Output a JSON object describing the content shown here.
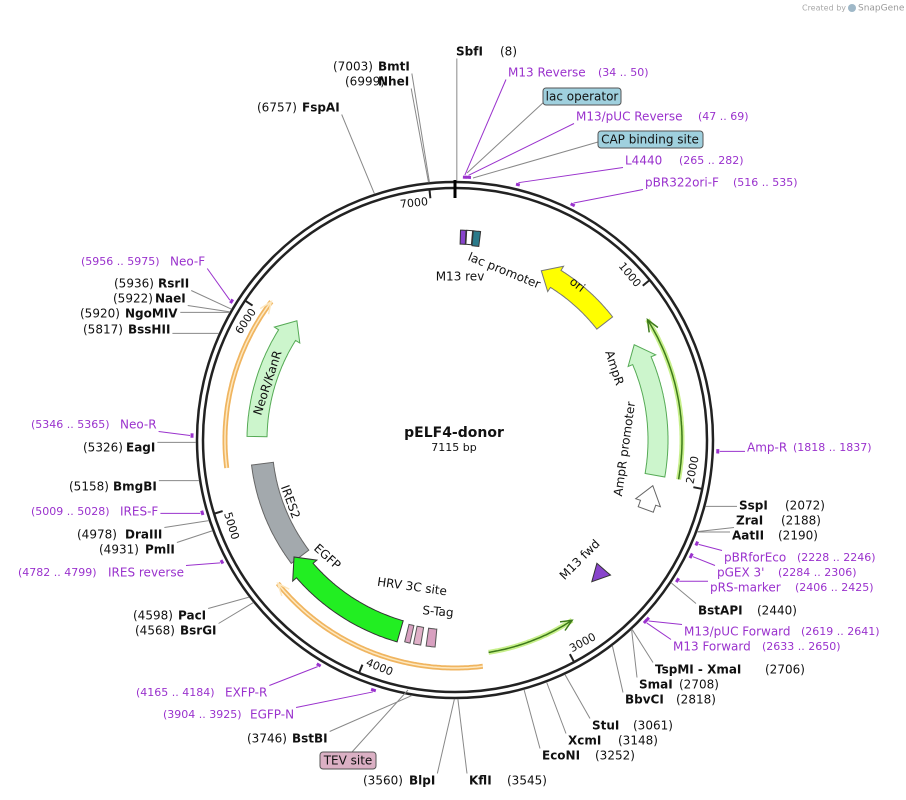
{
  "branding": {
    "created_by": "Created by",
    "brand": "SnapGene"
  },
  "plasmid": {
    "name": "pELF4-donor",
    "size": {
      "value": 7115,
      "label": "7115 bp"
    },
    "ticks": [
      1000,
      2000,
      3000,
      4000,
      5000,
      6000,
      7000
    ]
  },
  "enzymes": [
    {
      "name": "SbfI",
      "position": {
        "value": 8,
        "label": "(8)"
      }
    },
    {
      "name": "SspI",
      "position": {
        "value": 2072,
        "label": "(2072)"
      }
    },
    {
      "name": "ZraI",
      "position": {
        "value": 2188,
        "label": "(2188)"
      }
    },
    {
      "name": "AatII",
      "position": {
        "value": 2190,
        "label": "(2190)"
      }
    },
    {
      "name": "BstAPI",
      "position": {
        "value": 2440,
        "label": "(2440)"
      }
    },
    {
      "name": "TspMI - XmaI",
      "position": {
        "value": 2706,
        "label": "(2706)"
      }
    },
    {
      "name": "SmaI",
      "position": {
        "value": 2708,
        "label": "(2708)"
      }
    },
    {
      "name": "BbvCI",
      "position": {
        "value": 2818,
        "label": "(2818)"
      }
    },
    {
      "name": "StuI",
      "position": {
        "value": 3061,
        "label": "(3061)"
      }
    },
    {
      "name": "XcmI",
      "position": {
        "value": 3148,
        "label": "(3148)"
      }
    },
    {
      "name": "EcoNI",
      "position": {
        "value": 3252,
        "label": "(3252)"
      }
    },
    {
      "name": "KflI",
      "position": {
        "value": 3545,
        "label": "(3545)"
      }
    },
    {
      "name": "BlpI",
      "position": {
        "value": 3560,
        "label": "(3560)"
      }
    },
    {
      "name": "BstBI",
      "position": {
        "value": 3746,
        "label": "(3746)"
      }
    },
    {
      "name": "BsrGI",
      "position": {
        "value": 4568,
        "label": "(4568)"
      }
    },
    {
      "name": "PacI",
      "position": {
        "value": 4598,
        "label": "(4598)"
      }
    },
    {
      "name": "PmlI",
      "position": {
        "value": 4931,
        "label": "(4931)"
      }
    },
    {
      "name": "DraIII",
      "position": {
        "value": 4978,
        "label": "(4978)"
      }
    },
    {
      "name": "BmgBI",
      "position": {
        "value": 5158,
        "label": "(5158)"
      }
    },
    {
      "name": "EagI",
      "position": {
        "value": 5326,
        "label": "(5326)"
      }
    },
    {
      "name": "BssHII",
      "position": {
        "value": 5817,
        "label": "(5817)"
      }
    },
    {
      "name": "NgoMIV",
      "position": {
        "value": 5920,
        "label": "(5920)"
      }
    },
    {
      "name": "NaeI",
      "position": {
        "value": 5922,
        "label": "(5922)"
      }
    },
    {
      "name": "RsrII",
      "position": {
        "value": 5936,
        "label": "(5936)"
      }
    },
    {
      "name": "FspAI",
      "position": {
        "value": 6757,
        "label": "(6757)"
      }
    },
    {
      "name": "NheI",
      "position": {
        "value": 6999,
        "label": "(6999)"
      }
    },
    {
      "name": "BmtI",
      "position": {
        "value": 7003,
        "label": "(7003)"
      }
    }
  ],
  "primers": [
    {
      "name": "M13 Reverse",
      "range": {
        "start": 34,
        "end": 50,
        "label": "(34 .. 50)"
      }
    },
    {
      "name": "M13/pUC Reverse",
      "range": {
        "start": 47,
        "end": 69,
        "label": "(47 .. 69)"
      }
    },
    {
      "name": "L4440",
      "range": {
        "start": 265,
        "end": 282,
        "label": "(265 .. 282)"
      }
    },
    {
      "name": "pBR322ori-F",
      "range": {
        "start": 516,
        "end": 535,
        "label": "(516 .. 535)"
      }
    },
    {
      "name": "Amp-R",
      "range": {
        "start": 1818,
        "end": 1837,
        "label": "(1818 .. 1837)"
      }
    },
    {
      "name": "pBRforEco",
      "range": {
        "start": 2228,
        "end": 2246,
        "label": "(2228 .. 2246)"
      }
    },
    {
      "name": "pGEX 3'",
      "range": {
        "start": 2284,
        "end": 2306,
        "label": "(2284 .. 2306)"
      }
    },
    {
      "name": "pRS-marker",
      "range": {
        "start": 2406,
        "end": 2425,
        "label": "(2406 .. 2425)"
      }
    },
    {
      "name": "M13/pUC Forward",
      "range": {
        "start": 2619,
        "end": 2641,
        "label": "(2619 .. 2641)"
      }
    },
    {
      "name": "M13 Forward",
      "range": {
        "start": 2633,
        "end": 2650,
        "label": "(2633 .. 2650)"
      }
    },
    {
      "name": "EGFP-N",
      "range": {
        "start": 3904,
        "end": 3925,
        "label": "(3904 .. 3925)"
      }
    },
    {
      "name": "EXFP-R",
      "range": {
        "start": 4165,
        "end": 4184,
        "label": "(4165 .. 4184)"
      }
    },
    {
      "name": "IRES reverse",
      "range": {
        "start": 4782,
        "end": 4799,
        "label": "(4782 .. 4799)"
      }
    },
    {
      "name": "IRES-F",
      "range": {
        "start": 5009,
        "end": 5028,
        "label": "(5009 .. 5028)"
      }
    },
    {
      "name": "Neo-R",
      "range": {
        "start": 5346,
        "end": 5365,
        "label": "(5346 .. 5365)"
      }
    },
    {
      "name": "Neo-F",
      "range": {
        "start": 5956,
        "end": 5975,
        "label": "(5956 .. 5975)"
      }
    }
  ],
  "boxed_features": [
    "lac operator",
    "CAP binding site",
    "TEV site"
  ],
  "features": [
    "lac promoter",
    "M13 rev",
    "ori",
    "AmpR",
    "AmpR promoter",
    "M13 fwd",
    "NeoR/KanR",
    "IRES2",
    "EGFP",
    "HRV 3C site",
    "S-Tag"
  ]
}
